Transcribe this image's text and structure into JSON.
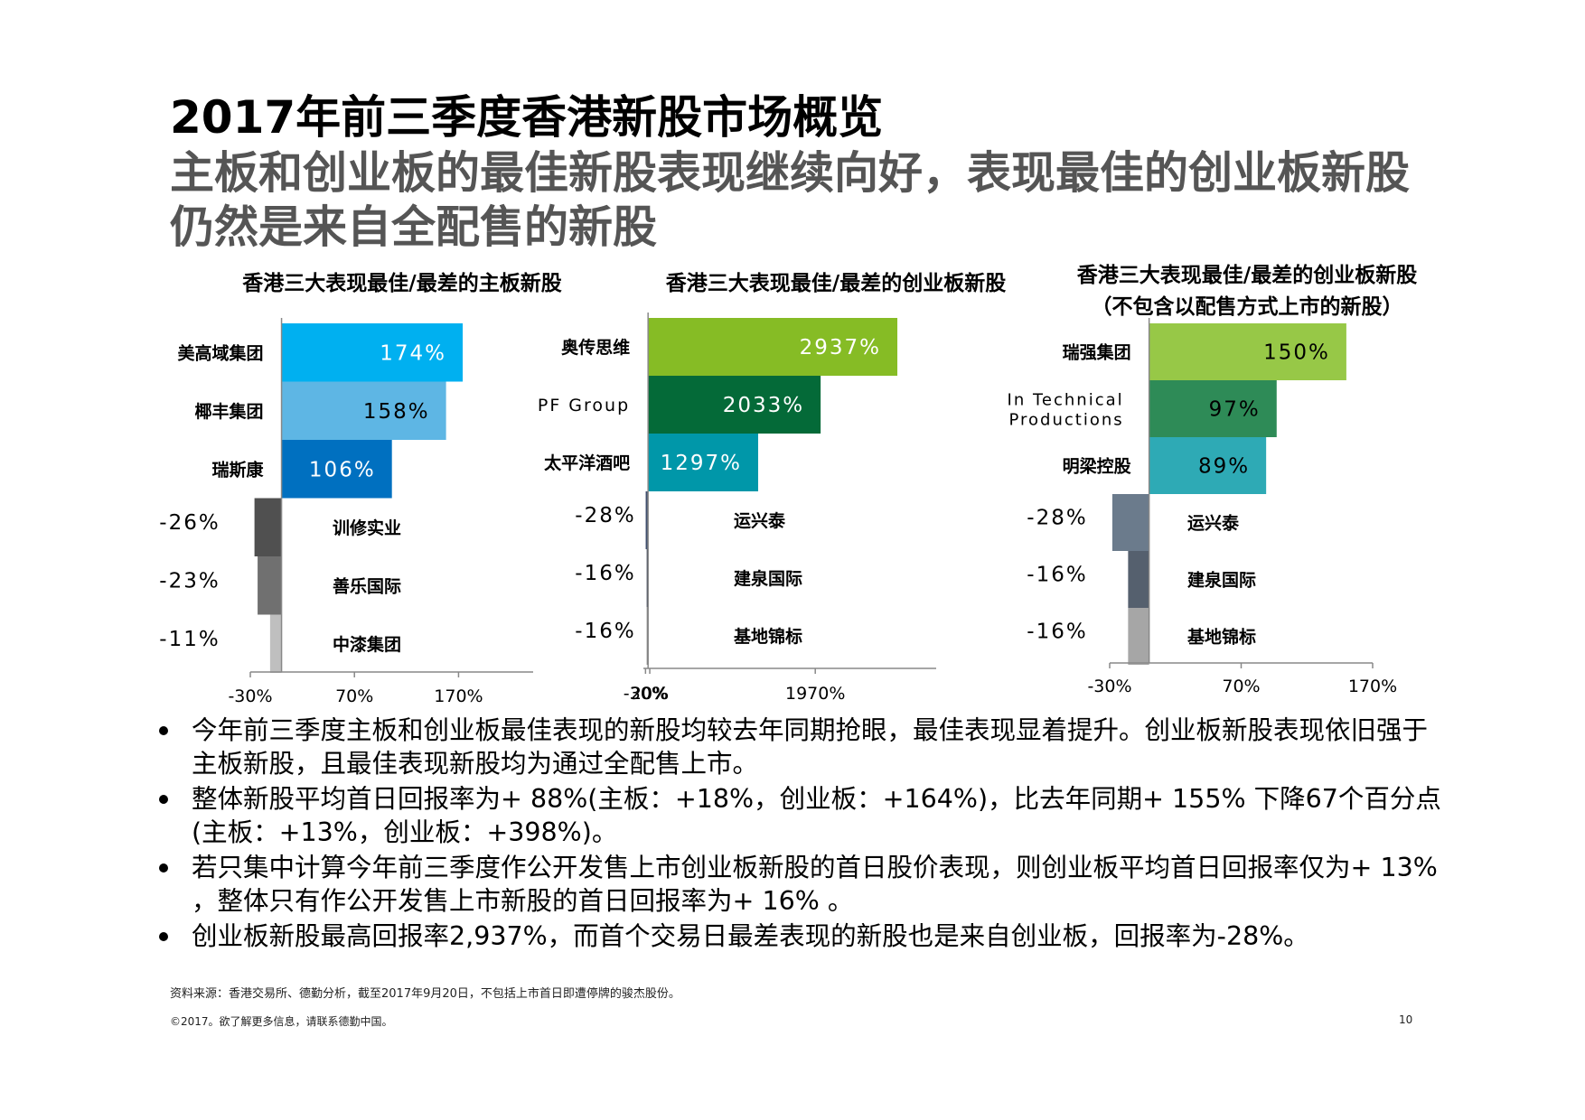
{
  "title": "2017年前三季度香港新股市场概览",
  "subtitle": "主板和创业板的最佳新股表现继续向好，表现最佳的创业板新股仍然是来自全配售的新股",
  "chart_data": [
    {
      "type": "bar",
      "orientation": "horizontal",
      "title": "香港三大表现最佳/最差的主板新股",
      "categories": [
        "美高域集团",
        "椰丰集团",
        "瑞斯康",
        "训修实业",
        "善乐国际",
        "中漆集团"
      ],
      "values": [
        174,
        158,
        106,
        -26,
        -23,
        -11
      ],
      "labels": [
        "174%",
        "158%",
        "106%",
        "-26%",
        "-23%",
        "-11%"
      ],
      "colors": [
        "#00B0F0",
        "#5EB6E4",
        "#0070C0",
        "#505050",
        "#707070",
        "#BFBFBF"
      ],
      "xlim": [
        -30,
        200
      ],
      "xticks": [
        -30,
        70,
        170
      ],
      "xtick_labels": [
        "-30%",
        "70%",
        "170%"
      ]
    },
    {
      "type": "bar",
      "orientation": "horizontal",
      "title": "香港三大表现最佳/最差的创业板新股",
      "categories": [
        "奥传思维",
        "PF Group",
        "太平洋酒吧",
        "运兴泰",
        "建泉国际",
        "基地锦标"
      ],
      "values": [
        2937,
        2033,
        1297,
        -28,
        -16,
        -16
      ],
      "labels": [
        "2937%",
        "2033%",
        "1297%",
        "-28%",
        "-16%",
        "-16%"
      ],
      "colors": [
        "#86BC25",
        "#046A38",
        "#0097A9",
        "#404F6E",
        "#2C3548",
        "#7F7F7F"
      ],
      "xlim": [
        -55,
        3650
      ],
      "xticks": [
        -30,
        20,
        1970
      ],
      "xtick_labels": [
        "-30%",
        "20%",
        "1970%"
      ]
    },
    {
      "type": "bar",
      "orientation": "horizontal",
      "title": "香港三大表现最佳/最差的创业板新股",
      "subtitle": "（不包含以配售方式上市的新股）",
      "categories": [
        "瑞强集团",
        "In Technical Productions",
        "明梁控股",
        "运兴泰",
        "建泉国际",
        "基地锦标"
      ],
      "values": [
        150,
        97,
        89,
        -28,
        -16,
        -16
      ],
      "labels": [
        "150%",
        "97%",
        "89%",
        "-28%",
        "-16%",
        "-16%"
      ],
      "colors": [
        "#97C847",
        "#2E8B57",
        "#2EAAB5",
        "#6B7B8C",
        "#55606E",
        "#A6A6A6"
      ],
      "xlim": [
        -30,
        170
      ],
      "xticks": [
        -30,
        70,
        170
      ],
      "xtick_labels": [
        "-30%",
        "70%",
        "170%"
      ]
    }
  ],
  "bullets": [
    "今年前三季度主板和创业板最佳表现的新股均较去年同期抢眼，最佳表现显着提升。创业板新股表现依旧强于主板新股，且最佳表现新股均为通过全配售上市。",
    "整体新股平均首日回报率为+ 88%(主板：+18%，创业板：+164%)，比去年同期+ 155% 下降67个百分点(主板：+13%，创业板：+398%)。",
    "若只集中计算今年前三季度作公开发售上市创业板新股的首日股价表现，则创业板平均首日回报率仅为+ 13% ，整体只有作公开发售上市新股的首日回报率为+ 16% 。",
    "创业板新股最高回报率2,937%，而首个交易日最差表现的新股也是来自创业板，回报率为-28%。"
  ],
  "source": "资料来源：香港交易所、德勤分析，截至2017年9月20日，不包括上市首日即遭停牌的骏杰股份。",
  "copyright": "©2017。欲了解更多信息，请联系德勤中国。",
  "page_number": "10"
}
